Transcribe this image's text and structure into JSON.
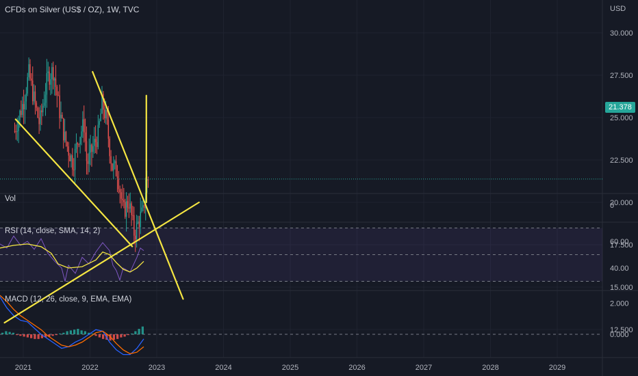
{
  "header": {
    "title": "CFDs on Silver (US$ / OZ), 1W, TVC",
    "currency": "USD"
  },
  "colors": {
    "background": "#161a25",
    "grid": "#1f2330",
    "up": "#26a69a",
    "down": "#ef5350",
    "drawing": "#f5e642",
    "rsi_line": "#7e57c2",
    "rsi_sma": "#f5e642",
    "macd_line": "#2962ff",
    "signal_line": "#ff6d00",
    "last_price": "#26a69a"
  },
  "chart_data": [
    {
      "type": "candlestick",
      "title": "CFDs on Silver (US$ / OZ), 1W, TVC",
      "x_ticks": [
        "2021",
        "2022",
        "2023",
        "2024",
        "2025",
        "2026",
        "2027",
        "2028",
        "2029"
      ],
      "y_ticks": [
        "30.000",
        "27.500",
        "25.000",
        "22.500",
        "20.000",
        "17.500",
        "15.000",
        "12.500"
      ],
      "ylim": [
        11.5,
        31.5
      ],
      "last_price": "21.378",
      "close_path": [
        [
          "2020-11-15",
          24.2
        ],
        [
          "2021-01-01",
          25.9
        ],
        [
          "2021-02-01",
          27.6
        ],
        [
          "2021-02-28",
          26.1
        ],
        [
          "2021-03-31",
          24.6
        ],
        [
          "2021-05-15",
          27.4
        ],
        [
          "2021-06-15",
          27.8
        ],
        [
          "2021-07-15",
          25.6
        ],
        [
          "2021-08-15",
          23.8
        ],
        [
          "2021-09-30",
          22.3
        ],
        [
          "2021-10-31",
          23.9
        ],
        [
          "2021-11-30",
          24.6
        ],
        [
          "2021-12-15",
          22.2
        ],
        [
          "2022-01-15",
          23.2
        ],
        [
          "2022-02-15",
          24.0
        ],
        [
          "2022-03-08",
          25.9
        ],
        [
          "2022-04-01",
          24.8
        ],
        [
          "2022-05-01",
          22.1
        ],
        [
          "2022-06-01",
          21.8
        ],
        [
          "2022-07-01",
          19.4
        ],
        [
          "2022-08-01",
          20.1
        ],
        [
          "2022-09-01",
          18.1
        ],
        [
          "2022-10-01",
          19.1
        ],
        [
          "2022-10-20",
          19.4
        ],
        [
          "2022-11-05",
          21.2
        ],
        [
          "2022-11-20",
          21.4
        ]
      ],
      "trendlines": [
        {
          "name": "falling-wedge-lower",
          "start": [
            "2020-11-20",
            24.9
          ],
          "end": [
            "2022-08-20",
            17.4
          ]
        },
        {
          "name": "falling-wedge-upper",
          "start": [
            "2022-01-15",
            27.7
          ],
          "end": [
            "2023-05-25",
            14.3
          ]
        },
        {
          "name": "rising-support",
          "start": [
            "2020-09-20",
            12.9
          ],
          "end": [
            "2023-08-20",
            20.0
          ]
        },
        {
          "name": "target-projection",
          "start": [
            "2022-11-05",
            20.0
          ],
          "end": [
            "2022-11-05",
            26.3
          ]
        }
      ]
    },
    {
      "type": "bar",
      "label": "Vol",
      "y_ticks": [
        "0"
      ]
    },
    {
      "type": "line",
      "label": "RSI (14, close, SMA, 14, 2)",
      "y_ticks": [
        "60.00",
        "40.00"
      ],
      "ylim": [
        28,
        72
      ],
      "band": [
        30,
        70
      ],
      "mid": 50,
      "series": [
        {
          "name": "RSI",
          "values": [
            [
              0,
              58
            ],
            [
              10,
              55
            ],
            [
              20,
              64
            ],
            [
              30,
              57
            ],
            [
              40,
              60
            ],
            [
              50,
              54
            ],
            [
              60,
              62
            ],
            [
              70,
              51
            ],
            [
              80,
              45
            ],
            [
              90,
              40
            ],
            [
              95,
              30
            ],
            [
              100,
              42
            ],
            [
              110,
              36
            ],
            [
              120,
              48
            ],
            [
              130,
              43
            ],
            [
              140,
              52
            ],
            [
              150,
              59
            ],
            [
              160,
              53
            ],
            [
              165,
              42
            ],
            [
              170,
              38
            ],
            [
              175,
              31
            ],
            [
              180,
              40
            ],
            [
              190,
              37
            ],
            [
              200,
              48
            ],
            [
              205,
              55
            ],
            [
              210,
              53
            ]
          ]
        },
        {
          "name": "SMA",
          "values": [
            [
              0,
              55
            ],
            [
              20,
              57
            ],
            [
              40,
              58
            ],
            [
              60,
              56
            ],
            [
              75,
              51
            ],
            [
              85,
              43
            ],
            [
              100,
              40
            ],
            [
              120,
              41
            ],
            [
              140,
              46
            ],
            [
              150,
              52
            ],
            [
              160,
              50
            ],
            [
              170,
              44
            ],
            [
              180,
              39
            ],
            [
              190,
              37
            ],
            [
              200,
              40
            ],
            [
              210,
              45
            ]
          ]
        }
      ]
    },
    {
      "type": "line",
      "label": "MACD (12, 26, close, 9, EMA, EMA)",
      "y_ticks": [
        "2.000",
        "0.000"
      ],
      "ylim": [
        -1.7,
        2.9
      ],
      "series": [
        {
          "name": "MACD",
          "values": [
            [
              0,
              2.4
            ],
            [
              10,
              1.7
            ],
            [
              20,
              1.2
            ],
            [
              30,
              0.9
            ],
            [
              40,
              0.8
            ],
            [
              50,
              0.4
            ],
            [
              60,
              0.0
            ],
            [
              70,
              -0.3
            ],
            [
              80,
              -0.6
            ],
            [
              90,
              -0.9
            ],
            [
              100,
              -0.8
            ],
            [
              110,
              -0.5
            ],
            [
              120,
              -0.3
            ],
            [
              130,
              0.0
            ],
            [
              140,
              0.3
            ],
            [
              150,
              0.2
            ],
            [
              160,
              -0.5
            ],
            [
              170,
              -1.0
            ],
            [
              180,
              -1.3
            ],
            [
              190,
              -1.3
            ],
            [
              200,
              -0.9
            ],
            [
              210,
              -0.3
            ]
          ]
        },
        {
          "name": "Signal",
          "values": [
            [
              0,
              2.5
            ],
            [
              10,
              2.1
            ],
            [
              20,
              1.6
            ],
            [
              30,
              1.2
            ],
            [
              40,
              0.9
            ],
            [
              50,
              0.6
            ],
            [
              60,
              0.3
            ],
            [
              70,
              -0.1
            ],
            [
              80,
              -0.4
            ],
            [
              90,
              -0.7
            ],
            [
              100,
              -0.8
            ],
            [
              110,
              -0.7
            ],
            [
              120,
              -0.5
            ],
            [
              130,
              -0.2
            ],
            [
              140,
              0.1
            ],
            [
              150,
              0.2
            ],
            [
              160,
              -0.1
            ],
            [
              170,
              -0.6
            ],
            [
              180,
              -1.0
            ],
            [
              190,
              -1.25
            ],
            [
              200,
              -1.15
            ],
            [
              210,
              -0.8
            ]
          ]
        }
      ],
      "histogram": [
        0.1,
        0.2,
        0.15,
        0.1,
        -0.05,
        -0.1,
        -0.15,
        -0.2,
        -0.25,
        -0.3,
        -0.3,
        -0.25,
        -0.2,
        -0.15,
        -0.1,
        -0.05,
        0.05,
        0.1,
        0.2,
        0.25,
        0.3,
        0.35,
        0.25,
        0.2,
        0.1,
        0.05,
        -0.1,
        -0.2,
        -0.3,
        -0.35,
        -0.4,
        -0.35,
        -0.3,
        -0.2,
        -0.15,
        -0.05,
        0.05,
        0.2,
        0.35,
        0.5
      ]
    }
  ]
}
